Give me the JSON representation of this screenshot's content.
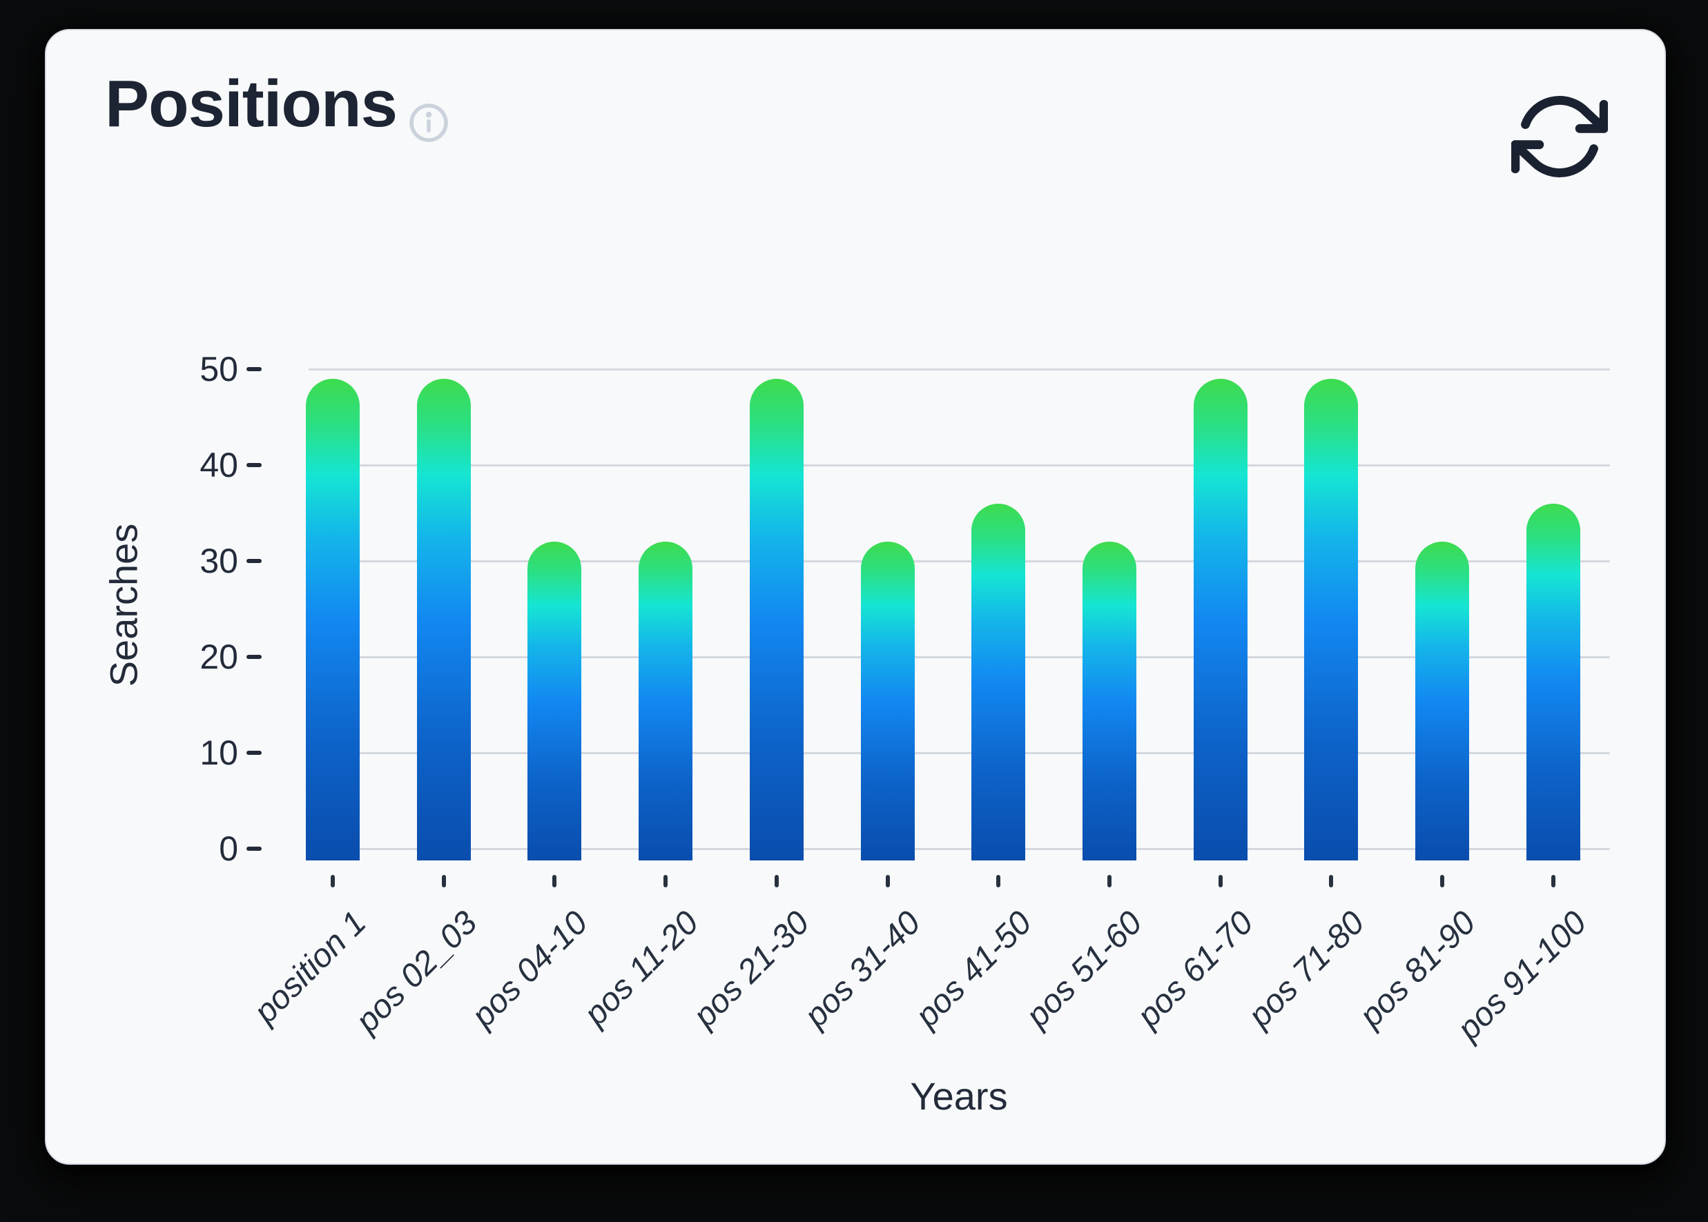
{
  "card": {
    "title": "Positions",
    "info_icon": "info-circle",
    "refresh_icon": "refresh-sync-arrows"
  },
  "chart_data": {
    "type": "bar",
    "title": "Positions",
    "xlabel": "Years",
    "ylabel": "Searches",
    "categories": [
      "position 1",
      "pos 02_03",
      "pos 04-10",
      "pos 11-20",
      "pos 21-30",
      "pos 31-40",
      "pos 41-50",
      "pos 51-60",
      "pos 61-70",
      "pos 71-80",
      "pos 81-90",
      "pos 91-100"
    ],
    "values": [
      49,
      49,
      32,
      32,
      49,
      32,
      36,
      32,
      49,
      49,
      32,
      36
    ],
    "yticks": [
      0,
      10,
      20,
      30,
      40,
      50
    ],
    "ylim": [
      0,
      52
    ],
    "grid": "horizontal-only",
    "legend": "none",
    "bar_gradient_top_to_bottom": [
      "#3edb4e",
      "#15e5d3",
      "#1288f1",
      "#0a4dad"
    ]
  },
  "colors": {
    "card_background": "#f8f9fa",
    "card_border": "#d8dce4",
    "page_background": "#0a0b0c",
    "title_text": "#1d2433",
    "axis_text": "#232b3a",
    "gridline": "#d3d8e0",
    "info_icon": "#ccd2dc",
    "refresh_icon": "#1a2130"
  }
}
